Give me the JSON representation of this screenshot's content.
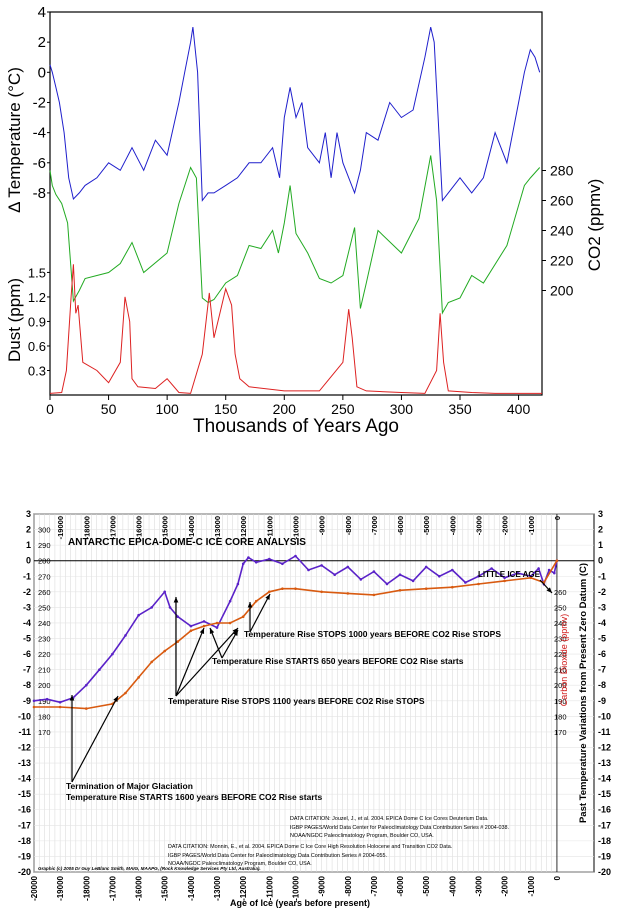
{
  "chart_data": [
    {
      "type": "line",
      "xlabel": "Thousands of Years Ago",
      "x_ticks": [
        "0",
        "50",
        "100",
        "150",
        "200",
        "250",
        "300",
        "350",
        "400"
      ],
      "xlim": [
        0,
        420
      ],
      "panels": [
        {
          "name": "temperature",
          "ylabel": "Δ Temperature (°C)",
          "y_ticks": [
            "4",
            "2",
            "0",
            "-2",
            "-4",
            "-6",
            "-8"
          ],
          "ylim": [
            -9,
            4
          ],
          "color": "#1f1fcc",
          "x": [
            0,
            2,
            5,
            8,
            12,
            16,
            20,
            25,
            30,
            40,
            50,
            60,
            70,
            80,
            90,
            100,
            110,
            115,
            120,
            122,
            126,
            130,
            135,
            140,
            150,
            160,
            170,
            180,
            190,
            196,
            200,
            205,
            210,
            215,
            220,
            230,
            235,
            240,
            245,
            250,
            260,
            265,
            270,
            280,
            290,
            300,
            310,
            320,
            325,
            328,
            332,
            335,
            340,
            350,
            360,
            370,
            380,
            390,
            400,
            405,
            410,
            414,
            418
          ],
          "values": [
            0.5,
            0,
            -1,
            -2,
            -4,
            -7,
            -8.4,
            -8,
            -7.5,
            -7,
            -6,
            -6.5,
            -5,
            -6.5,
            -4.5,
            -5.5,
            -2,
            0,
            2,
            3,
            0,
            -8.5,
            -8,
            -8,
            -7.5,
            -7,
            -6,
            -6,
            -5,
            -7,
            -3,
            -1,
            -3,
            -2,
            -5,
            -6,
            -4,
            -7,
            -4,
            -6,
            -8,
            -6.5,
            -4,
            -4.5,
            -2,
            -3,
            -2.5,
            1,
            3,
            2,
            -4,
            -8.5,
            -8,
            -7,
            -8,
            -7,
            -4,
            -6,
            -2,
            0,
            1.5,
            1,
            0
          ]
        },
        {
          "name": "co2",
          "ylabel": "CO2 (ppmv)",
          "y_ticks": [
            "280",
            "260",
            "240",
            "220",
            "200"
          ],
          "ylim": [
            185,
            295
          ],
          "color": "#22aa22",
          "x": [
            0,
            2,
            5,
            10,
            15,
            20,
            25,
            30,
            40,
            50,
            60,
            70,
            80,
            100,
            110,
            120,
            125,
            130,
            135,
            140,
            150,
            160,
            170,
            180,
            190,
            195,
            200,
            205,
            210,
            220,
            230,
            240,
            250,
            260,
            265,
            270,
            280,
            300,
            315,
            325,
            330,
            335,
            340,
            350,
            360,
            370,
            390,
            405,
            410,
            418
          ],
          "values": [
            280,
            270,
            264,
            258,
            245,
            193,
            200,
            208,
            210,
            212,
            218,
            232,
            212,
            225,
            258,
            282,
            275,
            195,
            192,
            194,
            205,
            210,
            230,
            228,
            240,
            225,
            245,
            270,
            238,
            225,
            208,
            205,
            210,
            242,
            188,
            205,
            240,
            225,
            248,
            290,
            260,
            185,
            192,
            195,
            210,
            205,
            230,
            270,
            275,
            282
          ]
        },
        {
          "name": "dust",
          "ylabel": "Dust (ppm)",
          "y_ticks": [
            "1.5",
            "1.2",
            "0.9",
            "0.6",
            "0.3"
          ],
          "ylim": [
            0,
            1.75
          ],
          "color": "#dd2222",
          "x": [
            0,
            10,
            14,
            18,
            20,
            22,
            24,
            28,
            40,
            50,
            60,
            64,
            68,
            70,
            75,
            90,
            100,
            110,
            120,
            130,
            136,
            140,
            145,
            150,
            155,
            158,
            162,
            170,
            200,
            230,
            250,
            255,
            258,
            262,
            270,
            300,
            320,
            330,
            333,
            336,
            340,
            360,
            380,
            400,
            420
          ],
          "values": [
            0.02,
            0.03,
            0.3,
            1.2,
            1.6,
            1.0,
            1.1,
            0.4,
            0.3,
            0.15,
            0.4,
            1.2,
            0.9,
            0.2,
            0.1,
            0.08,
            0.2,
            0.03,
            0.02,
            0.5,
            1.25,
            0.7,
            1.0,
            1.3,
            1.1,
            0.5,
            0.2,
            0.1,
            0.05,
            0.05,
            0.4,
            1.05,
            0.7,
            0.1,
            0.05,
            0.03,
            0.02,
            0.3,
            1.0,
            0.4,
            0.05,
            0.03,
            0.02,
            0.02,
            0.02
          ]
        }
      ]
    },
    {
      "type": "line",
      "title": "ANTARCTIC   EPICA-DOME-C   ICE   CORE   ANALYSIS",
      "xlabel": "Age of Ice (years before present)",
      "ylabel_right": "Past  Temperature  Variations  from  Present  Zero  Datum (C)",
      "ylabel_co2": "Carbon Dioxide (ppmv)",
      "xlim": [
        -20000,
        500
      ],
      "ylim": [
        -20,
        3
      ],
      "x_ticks_bottom": [
        "-20000",
        "-19000",
        "-18000",
        "-17000",
        "-16000",
        "-15000",
        "-14000",
        "-13000",
        "-12000",
        "-11000",
        "-10000",
        "-9000",
        "-8000",
        "-7000",
        "-6000",
        "-5000",
        "-4000",
        "-3000",
        "-2000",
        "-1000",
        "0"
      ],
      "x_ticks_top": [
        "-19000",
        "-18000",
        "-17000",
        "-16000",
        "-15000",
        "-14000",
        "-13000",
        "-12000",
        "-11000",
        "-10000",
        "-9000",
        "-8000",
        "-7000",
        "-6000",
        "-5000",
        "-4000",
        "-3000",
        "-2000",
        "-1000",
        "0"
      ],
      "y_ticks": [
        "3",
        "2",
        "1",
        "0",
        "-1",
        "-2",
        "-3",
        "-4",
        "-5",
        "-6",
        "-7",
        "-8",
        "-9",
        "-10",
        "-11",
        "-12",
        "-13",
        "-14",
        "-15",
        "-16",
        "-17",
        "-18",
        "-19",
        "-20"
      ],
      "co2_ticks_left": [
        "300",
        "290",
        "280",
        "270",
        "260",
        "250",
        "240",
        "230",
        "220",
        "210",
        "200",
        "190",
        "180",
        "170"
      ],
      "co2_ticks_right": [
        "260",
        "250",
        "240",
        "230",
        "220",
        "210",
        "200",
        "190",
        "180",
        "170"
      ],
      "series": [
        {
          "name": "Temperature",
          "color": "#5a22c8",
          "x": [
            -20000,
            -19500,
            -19000,
            -18500,
            -18000,
            -17500,
            -17000,
            -16500,
            -16000,
            -15500,
            -15000,
            -14800,
            -14500,
            -14000,
            -13500,
            -13000,
            -12500,
            -12200,
            -12000,
            -11800,
            -11500,
            -11000,
            -10500,
            -10000,
            -9500,
            -9000,
            -8500,
            -8000,
            -7500,
            -7000,
            -6500,
            -6000,
            -5500,
            -5000,
            -4500,
            -4000,
            -3500,
            -3000,
            -2500,
            -2000,
            -1500,
            -1000,
            -700,
            -500,
            -300,
            -100,
            0
          ],
          "values": [
            -9,
            -8.9,
            -9.1,
            -8.8,
            -8,
            -7,
            -6,
            -4.8,
            -3.5,
            -3,
            -2,
            -3,
            -3.6,
            -4.2,
            -3.9,
            -4.3,
            -2.6,
            -1.5,
            -0.2,
            0.2,
            -0.1,
            0.1,
            -0.2,
            0.3,
            -0.6,
            -0.3,
            -0.9,
            -0.4,
            -1.2,
            -0.7,
            -1.5,
            -0.9,
            -1.3,
            -0.4,
            -1.0,
            -0.6,
            -1.4,
            -1.0,
            -0.5,
            -1.1,
            -0.8,
            -1.0,
            -0.5,
            -1.5,
            -0.6,
            -0.8,
            0
          ]
        },
        {
          "name": "CO2",
          "color": "#d85a10",
          "x": [
            -20000,
            -19000,
            -18000,
            -17000,
            -16500,
            -16000,
            -15500,
            -15000,
            -14500,
            -14000,
            -13500,
            -13000,
            -12500,
            -12000,
            -11500,
            -11000,
            -10500,
            -10000,
            -9000,
            -8000,
            -7000,
            -6000,
            -5000,
            -4000,
            -3000,
            -2000,
            -1000,
            -500,
            0
          ],
          "values": [
            186,
            186,
            185,
            188,
            195,
            205,
            215,
            222,
            228,
            235,
            238,
            240,
            240,
            244,
            254,
            260,
            262,
            262,
            260,
            259,
            258,
            261,
            262,
            263,
            265,
            267,
            269,
            266,
            280
          ]
        }
      ],
      "annotations": [
        "LITTLE ICE AGE",
        "Temperature Rise STOPS 1000 years  BEFORE CO2 Rise STOPS",
        "Temperature Rise STARTS 650 years  BEFORE CO2 Rise starts",
        "Temperature Rise STOPS 1100 years  BEFORE CO2 Rise STOPS",
        "Termination of Major Glaciation",
        "Temperature Rise STARTS 1600 years  BEFORE CO2 Rise starts"
      ],
      "citations": [
        "DATA CITATION:  Jouzel, J., et al. 2004.  EPICA Dome C Ice Cores Deuterium Data.",
        "IGBP PAGES/World Data Center for Paleoclimatology Data Contribution Series # 2004-038.",
        "NOAA/NGDC Paleoclimatology Program, Boulder CO, USA.",
        "DATA CITATION:  Monnin, E., et al.  2004.  EPICA Dome C Ice Core High Resolution Holocene and Transition CO2 Data.",
        "IGBP PAGES/World Data Center for Paleoclimatology Data Contribution Series # 2004-055.",
        "NOAA/NGDC Paleoclimatology Program, Boulder CO, USA."
      ],
      "credit": "Graphic (c) 2005 Dr Guy LeBlanc Smith, MAIG, MAAPG, (Rock Knowledge Services Pty Ltd, Australia)."
    }
  ]
}
